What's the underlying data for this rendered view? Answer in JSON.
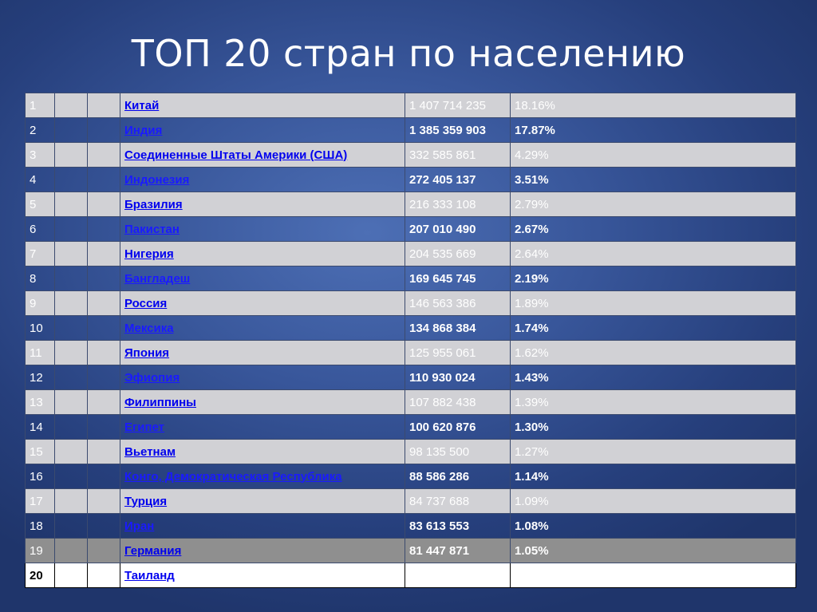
{
  "title": "ТОП 20 стран по населению",
  "rows": [
    {
      "n": "1",
      "country": "Китай",
      "population": "1 407 714 235",
      "percent": "18.16%"
    },
    {
      "n": "2",
      "country": "Индия",
      "population": "1 385 359 903",
      "percent": "17.87%"
    },
    {
      "n": "3",
      "country": "Соединенные Штаты Америки (США)",
      "population": "332 585 861",
      "percent": "4.29%"
    },
    {
      "n": "4",
      "country": "Индонезия",
      "population": "272 405 137",
      "percent": "3.51%"
    },
    {
      "n": "5",
      "country": "Бразилия",
      "population": "216 333 108",
      "percent": "2.79%"
    },
    {
      "n": "6",
      "country": "Пакистан",
      "population": "207 010 490",
      "percent": "2.67%"
    },
    {
      "n": "7",
      "country": "Нигерия",
      "population": "204 535 669",
      "percent": "2.64%"
    },
    {
      "n": "8",
      "country": "Бангладеш",
      "population": "169 645 745",
      "percent": "2.19%"
    },
    {
      "n": "9",
      "country": "Россия",
      "population": "146 563 386",
      "percent": "1.89%"
    },
    {
      "n": "10",
      "country": "Мексика",
      "population": "134 868 384",
      "percent": "1.74%"
    },
    {
      "n": "11",
      "country": "Япония",
      "population": "125 955 061",
      "percent": "1.62%"
    },
    {
      "n": "12",
      "country": "Эфиопия",
      "population": "110 930 024",
      "percent": "1.43%"
    },
    {
      "n": "13",
      "country": "Филиппины",
      "population": "107 882 438",
      "percent": "1.39%"
    },
    {
      "n": "14",
      "country": "Египет",
      "population": "100 620 876",
      "percent": "1.30%"
    },
    {
      "n": "15",
      "country": "Вьетнам",
      "population": "98 135 500",
      "percent": "1.27%"
    },
    {
      "n": "16",
      "country": "Конго, Демократическая Республика",
      "population": "88 586 286",
      "percent": "1.14%"
    },
    {
      "n": "17",
      "country": "Турция",
      "population": "84 737 688",
      "percent": "1.09%"
    },
    {
      "n": "18",
      "country": "Иран",
      "population": "83 613 553",
      "percent": "1.08%"
    },
    {
      "n": "19",
      "country": "Германия",
      "population": "81 447 871",
      "percent": "1.05%"
    },
    {
      "n": "20",
      "country": "Таиланд",
      "population": "",
      "percent": ""
    }
  ]
}
